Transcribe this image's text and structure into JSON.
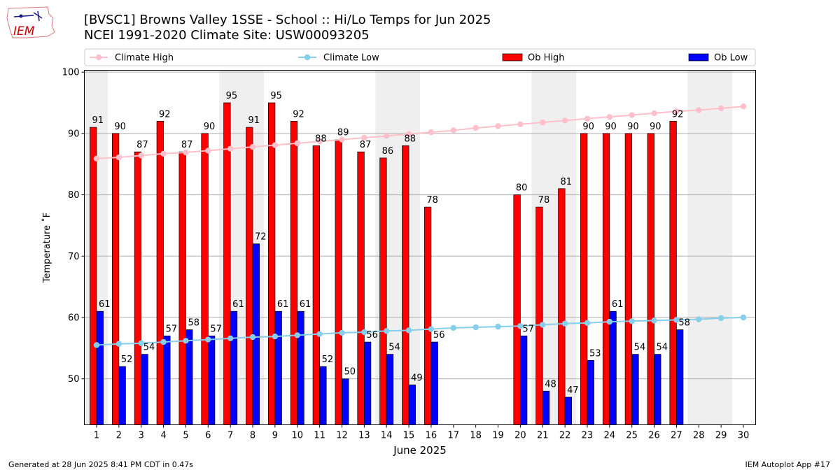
{
  "header": {
    "logo_text": "IEM",
    "title_line1": "[BVSC1] Browns Valley 1SSE - School :: Hi/Lo Temps for Jun 2025",
    "title_line2": "NCEI 1991-2020 Climate Site: USW00093205"
  },
  "footer": {
    "generated": "Generated at 28 Jun 2025 8:41 PM CDT in 0.47s",
    "app": "IEM Autoplot App #17"
  },
  "chart_data": {
    "type": "bar",
    "xlabel": "June 2025",
    "ylabel": "Temperature ˚F",
    "ylim": [
      42.5,
      100.3
    ],
    "yticks": [
      50,
      60,
      70,
      80,
      90,
      100
    ],
    "days": [
      1,
      2,
      3,
      4,
      5,
      6,
      7,
      8,
      9,
      10,
      11,
      12,
      13,
      14,
      15,
      16,
      17,
      18,
      19,
      20,
      21,
      22,
      23,
      24,
      25,
      26,
      27,
      28,
      29,
      30
    ],
    "weekend_days": [
      1,
      7,
      8,
      14,
      15,
      21,
      22,
      28,
      29
    ],
    "grid": "horizontal",
    "legend_placement": "top",
    "series": [
      {
        "name": "Ob High",
        "kind": "bar",
        "color": "#ff0000",
        "values": [
          91,
          90,
          87,
          92,
          87,
          90,
          95,
          91,
          95,
          92,
          88,
          89,
          87,
          86,
          88,
          78,
          null,
          null,
          null,
          80,
          78,
          81,
          90,
          90,
          90,
          90,
          92,
          null,
          null,
          null
        ]
      },
      {
        "name": "Ob Low",
        "kind": "bar",
        "color": "#0000ff",
        "values": [
          61,
          52,
          54,
          57,
          58,
          57,
          61,
          72,
          61,
          61,
          52,
          50,
          56,
          54,
          49,
          56,
          null,
          null,
          null,
          57,
          48,
          47,
          53,
          61,
          54,
          54,
          58,
          null,
          null,
          null
        ]
      },
      {
        "name": "Climate High",
        "kind": "line",
        "color": "#ffc0cb",
        "values": [
          85.9,
          86.1,
          86.4,
          86.7,
          86.9,
          87.2,
          87.5,
          87.8,
          88.1,
          88.4,
          88.7,
          89.0,
          89.3,
          89.6,
          89.9,
          90.2,
          90.5,
          90.9,
          91.2,
          91.5,
          91.8,
          92.1,
          92.4,
          92.7,
          93.0,
          93.3,
          93.6,
          93.8,
          94.1,
          94.4
        ]
      },
      {
        "name": "Climate Low",
        "kind": "line",
        "color": "#87ceeb",
        "values": [
          55.5,
          55.7,
          55.8,
          56.0,
          56.2,
          56.4,
          56.6,
          56.8,
          56.9,
          57.1,
          57.3,
          57.5,
          57.6,
          57.8,
          57.9,
          58.1,
          58.3,
          58.4,
          58.5,
          58.6,
          58.8,
          59.0,
          59.1,
          59.3,
          59.4,
          59.5,
          59.6,
          59.7,
          59.9,
          60.0
        ]
      }
    ],
    "legend": [
      "Climate High",
      "Climate Low",
      "Ob High",
      "Ob Low"
    ]
  }
}
